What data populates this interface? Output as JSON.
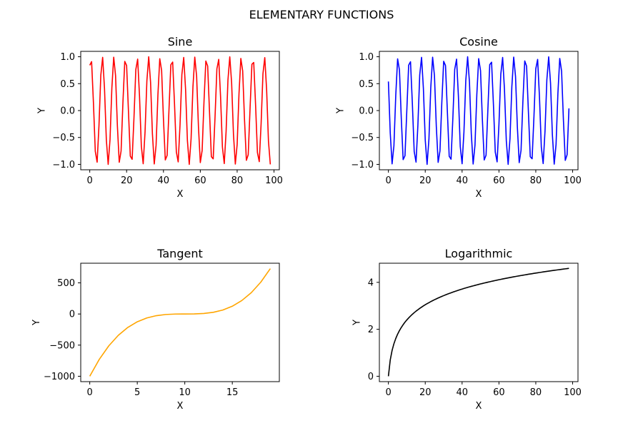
{
  "figure": {
    "title": "ELEMENTARY FUNCTIONS"
  },
  "chart_data": [
    {
      "type": "line",
      "title": "Sine",
      "xlabel": "X",
      "ylabel": "Y",
      "color": "#ff0000",
      "xlim": [
        -4.9,
        102.9
      ],
      "ylim": [
        -1.1,
        1.1
      ],
      "x_ticks": [
        0,
        20,
        40,
        60,
        80,
        100
      ],
      "x_tick_labels": [
        "0",
        "20",
        "40",
        "60",
        "80",
        "100"
      ],
      "y_ticks": [
        -1.0,
        -0.5,
        0.0,
        0.5,
        1.0
      ],
      "y_tick_labels": [
        "−1.0",
        "−0.5",
        "0.0",
        "0.5",
        "1.0"
      ],
      "grid": false,
      "series": [
        {
          "x": [
            0,
            1,
            2,
            3,
            4,
            5,
            6,
            7,
            8,
            9,
            10,
            11,
            12,
            13,
            14,
            15,
            16,
            17,
            18,
            19,
            20,
            21,
            22,
            23,
            24,
            25,
            26,
            27,
            28,
            29,
            30,
            31,
            32,
            33,
            34,
            35,
            36,
            37,
            38,
            39,
            40,
            41,
            42,
            43,
            44,
            45,
            46,
            47,
            48,
            49,
            50,
            51,
            52,
            53,
            54,
            55,
            56,
            57,
            58,
            59,
            60,
            61,
            62,
            63,
            64,
            65,
            66,
            67,
            68,
            69,
            70,
            71,
            72,
            73,
            74,
            75,
            76,
            77,
            78,
            79,
            80,
            81,
            82,
            83,
            84,
            85,
            86,
            87,
            88,
            89,
            90,
            91,
            92,
            93,
            94,
            95,
            96,
            97,
            98
          ],
          "y": [
            0.841,
            0.909,
            0.141,
            -0.757,
            -0.959,
            -0.279,
            0.657,
            0.989,
            0.412,
            -0.544,
            -1.0,
            -0.537,
            0.42,
            0.991,
            0.65,
            -0.288,
            -0.961,
            -0.751,
            0.15,
            0.913,
            0.837,
            -0.009,
            -0.846,
            -0.905,
            -0.132,
            0.763,
            0.956,
            0.271,
            -0.664,
            -0.988,
            -0.404,
            0.551,
            1.0,
            0.529,
            -0.428,
            -0.992,
            -0.644,
            0.296,
            0.963,
            0.746,
            -0.159,
            -0.917,
            -0.832,
            0.018,
            0.851,
            0.901,
            0.124,
            -0.768,
            -0.954,
            -0.262,
            0.67,
            0.987,
            0.396,
            -0.559,
            -1.0,
            -0.521,
            0.436,
            0.993,
            0.637,
            -0.305,
            -0.966,
            -0.74,
            0.167,
            0.92,
            0.827,
            -0.027,
            -0.856,
            -0.897,
            -0.115,
            0.774,
            0.951,
            0.254,
            -0.677,
            -0.985,
            -0.388,
            0.566,
            0.999,
            0.514,
            -0.444,
            -0.994,
            -0.631,
            0.313,
            0.968,
            0.735,
            -0.176,
            -0.924,
            -0.822,
            0.036,
            0.86,
            0.893,
            0.107,
            -0.779,
            -0.949,
            -0.245,
            0.683,
            0.984,
            0.379,
            -0.573,
            -0.999
          ]
        }
      ]
    },
    {
      "type": "line",
      "title": "Cosine",
      "xlabel": "X",
      "ylabel": "Y",
      "color": "#0000ff",
      "xlim": [
        -4.9,
        102.9
      ],
      "ylim": [
        -1.1,
        1.1
      ],
      "x_ticks": [
        0,
        20,
        40,
        60,
        80,
        100
      ],
      "x_tick_labels": [
        "0",
        "20",
        "40",
        "60",
        "80",
        "100"
      ],
      "y_ticks": [
        -1.0,
        -0.5,
        0.0,
        0.5,
        1.0
      ],
      "y_tick_labels": [
        "−1.0",
        "−0.5",
        "0.0",
        "0.5",
        "1.0"
      ],
      "grid": false,
      "series": [
        {
          "x": [
            0,
            1,
            2,
            3,
            4,
            5,
            6,
            7,
            8,
            9,
            10,
            11,
            12,
            13,
            14,
            15,
            16,
            17,
            18,
            19,
            20,
            21,
            22,
            23,
            24,
            25,
            26,
            27,
            28,
            29,
            30,
            31,
            32,
            33,
            34,
            35,
            36,
            37,
            38,
            39,
            40,
            41,
            42,
            43,
            44,
            45,
            46,
            47,
            48,
            49,
            50,
            51,
            52,
            53,
            54,
            55,
            56,
            57,
            58,
            59,
            60,
            61,
            62,
            63,
            64,
            65,
            66,
            67,
            68,
            69,
            70,
            71,
            72,
            73,
            74,
            75,
            76,
            77,
            78,
            79,
            80,
            81,
            82,
            83,
            84,
            85,
            86,
            87,
            88,
            89,
            90,
            91,
            92,
            93,
            94,
            95,
            96,
            97,
            98
          ],
          "y": [
            0.54,
            -0.416,
            -0.99,
            -0.654,
            0.284,
            0.96,
            0.754,
            -0.146,
            -0.911,
            -0.839,
            0.004,
            0.844,
            0.907,
            0.137,
            -0.76,
            -0.958,
            -0.275,
            0.66,
            0.989,
            0.408,
            -0.548,
            -1.0,
            -0.533,
            0.424,
            0.992,
            0.647,
            -0.292,
            -0.962,
            -0.748,
            0.154,
            0.915,
            0.835,
            -0.013,
            -0.849,
            -0.903,
            -0.128,
            0.765,
            0.955,
            0.267,
            -0.667,
            -0.988,
            -0.4,
            0.555,
            1.0,
            0.525,
            -0.432,
            -0.993,
            -0.641,
            0.301,
            0.965,
            0.743,
            -0.163,
            -0.918,
            -0.83,
            0.022,
            0.853,
            0.899,
            0.12,
            -0.771,
            -0.953,
            -0.258,
            0.674,
            0.986,
            0.392,
            -0.563,
            -1.0,
            -0.517,
            0.44,
            0.994,
            0.634,
            -0.309,
            -0.967,
            -0.737,
            0.172,
            0.922,
            0.825,
            -0.031,
            -0.858,
            -0.895,
            -0.111,
            0.776,
            0.95,
            0.249,
            -0.68,
            -0.985,
            -0.384,
            0.57,
            0.999,
            0.51,
            -0.448,
            -0.995,
            -0.628,
            0.318,
            0.969,
            0.732,
            -0.18,
            -0.925,
            -0.82,
            0.041
          ]
        }
      ]
    },
    {
      "type": "line",
      "title": "Tangent",
      "xlabel": "X",
      "ylabel": "Y",
      "color": "#ffa500",
      "xlim": [
        -0.95,
        19.95
      ],
      "ylim": [
        -1086.45,
        815.45
      ],
      "x_ticks": [
        0,
        5,
        10,
        15
      ],
      "x_tick_labels": [
        "0",
        "5",
        "10",
        "15"
      ],
      "y_ticks": [
        -1000,
        -500,
        0,
        500
      ],
      "y_tick_labels": [
        "−1000",
        "−500",
        "0",
        "500"
      ],
      "grid": false,
      "series": [
        {
          "x": [
            0,
            1,
            2,
            3,
            4,
            5,
            6,
            7,
            8,
            9,
            10,
            11,
            12,
            13,
            14,
            15,
            16,
            17,
            18,
            19
          ],
          "y": [
            -1000,
            -729,
            -512,
            -343,
            -216,
            -125,
            -64,
            -27,
            -8,
            -1,
            0,
            1,
            8,
            27,
            64,
            125,
            216,
            343,
            512,
            729
          ]
        }
      ]
    },
    {
      "type": "line",
      "title": "Logarithmic",
      "xlabel": "X",
      "ylabel": "Y",
      "color": "#000000",
      "xlim": [
        -4.9,
        102.9
      ],
      "ylim": [
        -0.229,
        4.814
      ],
      "x_ticks": [
        0,
        20,
        40,
        60,
        80,
        100
      ],
      "x_tick_labels": [
        "0",
        "20",
        "40",
        "60",
        "80",
        "100"
      ],
      "y_ticks": [
        0,
        2,
        4
      ],
      "y_tick_labels": [
        "0",
        "2",
        "4"
      ],
      "grid": false,
      "series": [
        {
          "x": [
            0,
            1,
            2,
            3,
            4,
            5,
            6,
            7,
            8,
            9,
            10,
            11,
            12,
            13,
            14,
            15,
            16,
            17,
            18,
            19,
            20,
            21,
            22,
            23,
            24,
            25,
            26,
            27,
            28,
            29,
            30,
            31,
            32,
            33,
            34,
            35,
            36,
            37,
            38,
            39,
            40,
            41,
            42,
            43,
            44,
            45,
            46,
            47,
            48,
            49,
            50,
            51,
            52,
            53,
            54,
            55,
            56,
            57,
            58,
            59,
            60,
            61,
            62,
            63,
            64,
            65,
            66,
            67,
            68,
            69,
            70,
            71,
            72,
            73,
            74,
            75,
            76,
            77,
            78,
            79,
            80,
            81,
            82,
            83,
            84,
            85,
            86,
            87,
            88,
            89,
            90,
            91,
            92,
            93,
            94,
            95,
            96,
            97,
            98
          ],
          "y": [
            0,
            0.693,
            1.099,
            1.386,
            1.609,
            1.792,
            1.946,
            2.079,
            2.197,
            2.303,
            2.398,
            2.485,
            2.565,
            2.639,
            2.708,
            2.773,
            2.833,
            2.89,
            2.944,
            2.996,
            3.045,
            3.091,
            3.135,
            3.178,
            3.219,
            3.258,
            3.296,
            3.332,
            3.367,
            3.401,
            3.434,
            3.466,
            3.497,
            3.526,
            3.555,
            3.584,
            3.611,
            3.638,
            3.664,
            3.689,
            3.714,
            3.738,
            3.761,
            3.784,
            3.807,
            3.829,
            3.85,
            3.871,
            3.892,
            3.912,
            3.932,
            3.951,
            3.97,
            3.989,
            4.007,
            4.025,
            4.043,
            4.06,
            4.078,
            4.094,
            4.111,
            4.127,
            4.143,
            4.159,
            4.174,
            4.19,
            4.205,
            4.22,
            4.234,
            4.248,
            4.263,
            4.277,
            4.29,
            4.304,
            4.317,
            4.331,
            4.344,
            4.357,
            4.369,
            4.382,
            4.394,
            4.407,
            4.419,
            4.431,
            4.443,
            4.454,
            4.466,
            4.477,
            4.489,
            4.5,
            4.511,
            4.522,
            4.533,
            4.543,
            4.554,
            4.564,
            4.575,
            4.585,
            4.595
          ]
        }
      ]
    }
  ]
}
